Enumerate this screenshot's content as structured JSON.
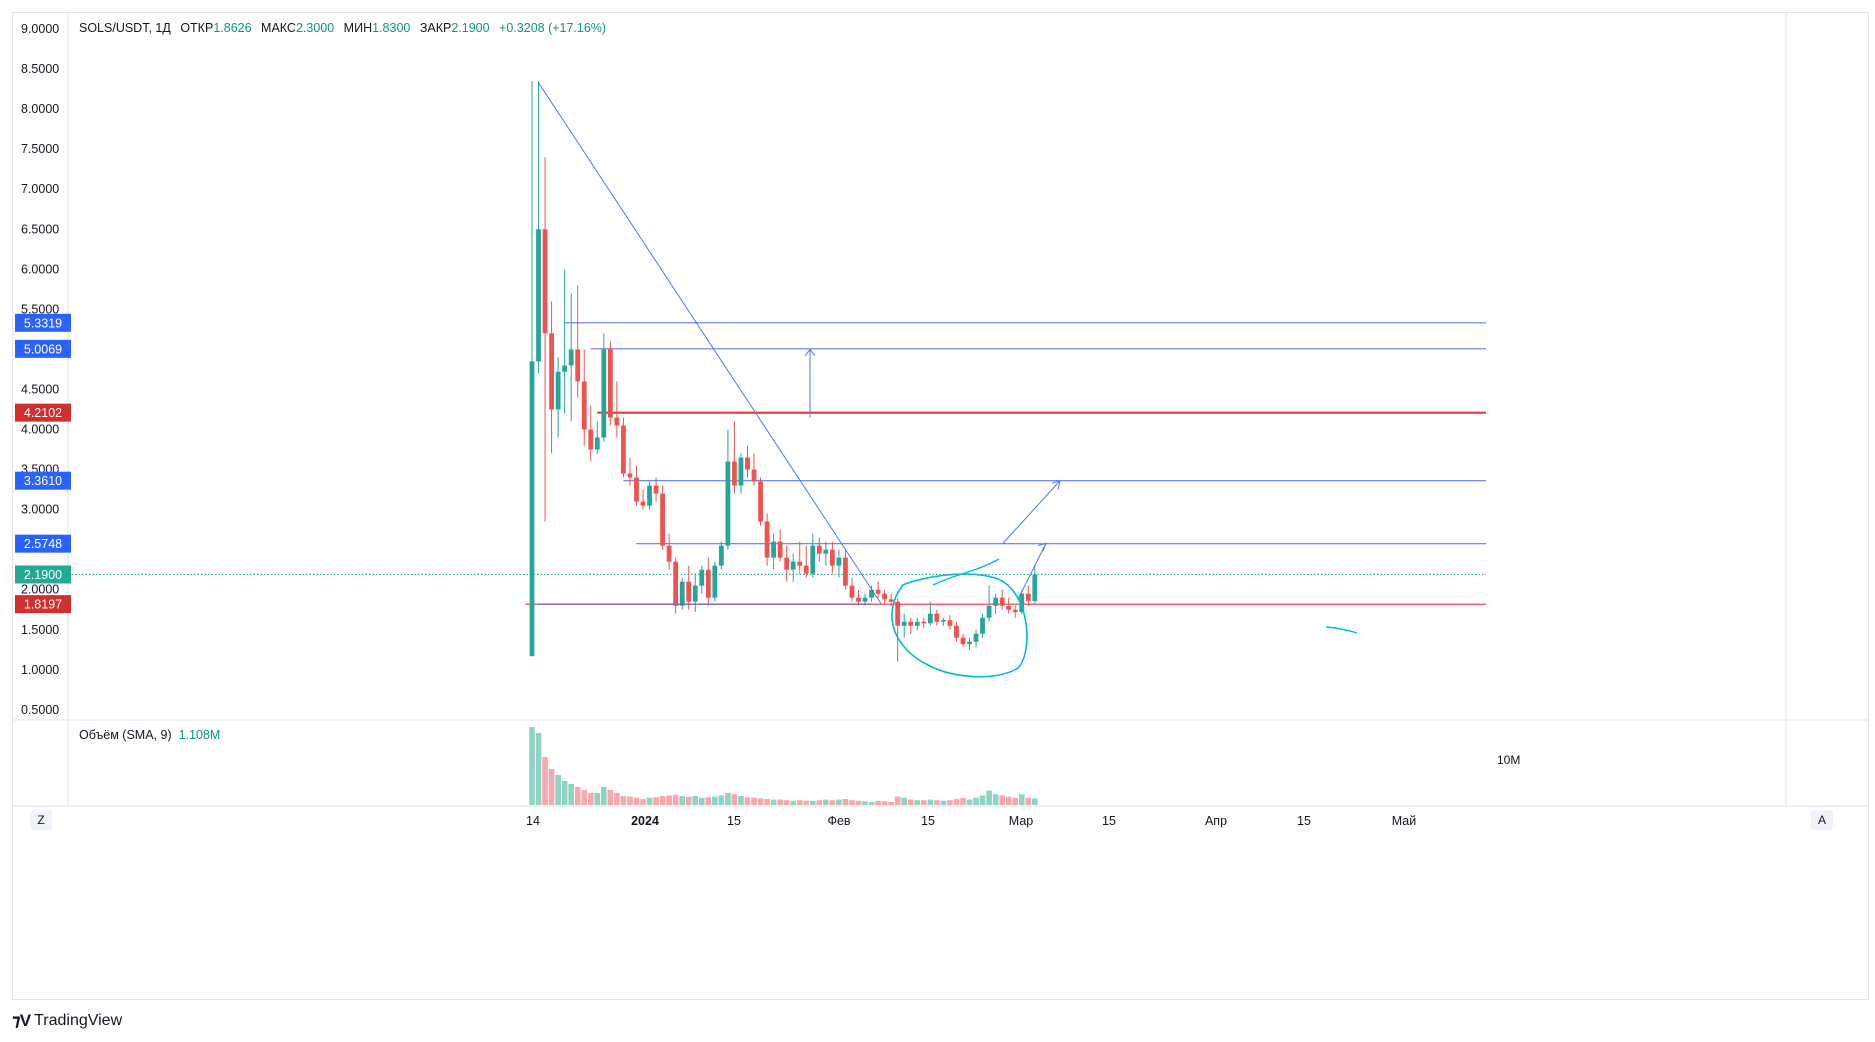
{
  "header": {
    "symbol": "SOLS/USDT",
    "interval": "1Д",
    "open_label": "ОТКР",
    "open": "1.8626",
    "high_label": "МАКС",
    "high": "2.3000",
    "low_label": "МИН",
    "low": "1.8300",
    "close_label": "ЗАКР",
    "close": "2.1900",
    "change": "+0.3208 (+17.16%)"
  },
  "volume_header": {
    "label": "Объём (SMA, 9)",
    "value": "1.108M",
    "axis_label": "10M"
  },
  "axis_buttons": {
    "left": "Z",
    "right": "A"
  },
  "branding": {
    "text": "TradingView"
  },
  "colors": {
    "up": "#26a69a",
    "down": "#ef5350",
    "line_blue": "#2962ff",
    "line_red": "#d32f2f",
    "marker_green": "#22ab94",
    "annotation": "#00bcd4",
    "vol_up": "#8fd3c3",
    "vol_down": "#f6a8ae"
  },
  "chart_data": {
    "type": "candlestick",
    "title": "SOLS/USDT, 1Д",
    "y_axis": {
      "ticks": [
        "9.0000",
        "8.5000",
        "8.0000",
        "7.5000",
        "7.0000",
        "6.5000",
        "6.0000",
        "5.5000",
        "4.5000",
        "4.0000",
        "3.5000",
        "3.0000",
        "2.0000",
        "1.5000",
        "1.0000",
        "0.5000"
      ],
      "range": [
        0.4,
        9.1
      ]
    },
    "x_axis": {
      "ticks": [
        "14",
        "2024",
        "15",
        "Фев",
        "15",
        "Мар",
        "15",
        "Апр",
        "15",
        "Май"
      ]
    },
    "price_labels": [
      {
        "value": "5.3319",
        "color": "#2962ff"
      },
      {
        "value": "5.0069",
        "color": "#2962ff"
      },
      {
        "value": "4.2102",
        "color": "#d32f2f"
      },
      {
        "value": "3.3610",
        "color": "#2962ff"
      },
      {
        "value": "2.5748",
        "color": "#2962ff"
      },
      {
        "value": "2.1900",
        "color": "#22ab94"
      },
      {
        "value": "1.8197",
        "color": "#d32f2f"
      }
    ],
    "horizontal_levels": [
      {
        "price": 5.3319,
        "color": "blue",
        "start_day": 5
      },
      {
        "price": 5.0069,
        "color": "blue",
        "start_day": 9
      },
      {
        "price": 4.2102,
        "color": "red",
        "thick": true,
        "start_day": 10
      },
      {
        "price": 3.361,
        "color": "blue",
        "start_day": 14
      },
      {
        "price": 2.5748,
        "color": "blue",
        "start_day": 16
      },
      {
        "price": 1.8197,
        "color": "red",
        "start_day": -1
      },
      {
        "price": 2.19,
        "color": "green",
        "dotted": true,
        "start_day": -70
      }
    ],
    "candles": [
      {
        "o": 1.17,
        "h": 8.35,
        "l": 1.17,
        "c": 4.85
      },
      {
        "o": 4.85,
        "h": 8.35,
        "l": 4.7,
        "c": 6.5
      },
      {
        "o": 6.5,
        "h": 7.4,
        "l": 2.85,
        "c": 5.2
      },
      {
        "o": 5.2,
        "h": 5.6,
        "l": 3.7,
        "c": 4.25
      },
      {
        "o": 4.25,
        "h": 4.9,
        "l": 3.9,
        "c": 4.72
      },
      {
        "o": 4.72,
        "h": 6.0,
        "l": 4.2,
        "c": 4.8
      },
      {
        "o": 4.8,
        "h": 5.7,
        "l": 4.1,
        "c": 5.0
      },
      {
        "o": 5.0,
        "h": 5.8,
        "l": 4.4,
        "c": 4.6
      },
      {
        "o": 4.6,
        "h": 5.0,
        "l": 3.8,
        "c": 4.0
      },
      {
        "o": 4.0,
        "h": 4.3,
        "l": 3.6,
        "c": 3.75
      },
      {
        "o": 3.75,
        "h": 4.1,
        "l": 3.7,
        "c": 3.9
      },
      {
        "o": 3.9,
        "h": 5.2,
        "l": 3.85,
        "c": 5.0
      },
      {
        "o": 5.0,
        "h": 5.1,
        "l": 4.05,
        "c": 4.15
      },
      {
        "o": 4.15,
        "h": 4.6,
        "l": 3.9,
        "c": 4.05
      },
      {
        "o": 4.05,
        "h": 4.15,
        "l": 3.4,
        "c": 3.45
      },
      {
        "o": 3.45,
        "h": 3.65,
        "l": 3.3,
        "c": 3.4
      },
      {
        "o": 3.4,
        "h": 3.55,
        "l": 3.05,
        "c": 3.1
      },
      {
        "o": 3.1,
        "h": 3.25,
        "l": 3.0,
        "c": 3.05
      },
      {
        "o": 3.05,
        "h": 3.35,
        "l": 3.0,
        "c": 3.3
      },
      {
        "o": 3.3,
        "h": 3.4,
        "l": 3.1,
        "c": 3.2
      },
      {
        "o": 3.2,
        "h": 3.3,
        "l": 2.5,
        "c": 2.55
      },
      {
        "o": 2.55,
        "h": 2.7,
        "l": 2.25,
        "c": 2.35
      },
      {
        "o": 2.35,
        "h": 2.4,
        "l": 1.7,
        "c": 1.8
      },
      {
        "o": 1.8,
        "h": 2.15,
        "l": 1.75,
        "c": 2.1
      },
      {
        "o": 2.1,
        "h": 2.3,
        "l": 1.75,
        "c": 1.85
      },
      {
        "o": 1.85,
        "h": 2.2,
        "l": 1.72,
        "c": 2.05
      },
      {
        "o": 2.05,
        "h": 2.3,
        "l": 1.95,
        "c": 2.25
      },
      {
        "o": 2.25,
        "h": 2.4,
        "l": 1.8,
        "c": 1.9
      },
      {
        "o": 1.9,
        "h": 2.35,
        "l": 1.85,
        "c": 2.3
      },
      {
        "o": 2.3,
        "h": 2.6,
        "l": 2.25,
        "c": 2.55
      },
      {
        "o": 2.55,
        "h": 4.0,
        "l": 2.5,
        "c": 3.6
      },
      {
        "o": 3.6,
        "h": 4.1,
        "l": 3.2,
        "c": 3.3
      },
      {
        "o": 3.3,
        "h": 3.7,
        "l": 3.2,
        "c": 3.65
      },
      {
        "o": 3.65,
        "h": 3.8,
        "l": 3.4,
        "c": 3.5
      },
      {
        "o": 3.5,
        "h": 3.7,
        "l": 3.3,
        "c": 3.35
      },
      {
        "o": 3.35,
        "h": 3.4,
        "l": 2.8,
        "c": 2.85
      },
      {
        "o": 2.85,
        "h": 2.95,
        "l": 2.3,
        "c": 2.4
      },
      {
        "o": 2.4,
        "h": 2.7,
        "l": 2.25,
        "c": 2.6
      },
      {
        "o": 2.6,
        "h": 2.75,
        "l": 2.35,
        "c": 2.4
      },
      {
        "o": 2.4,
        "h": 2.55,
        "l": 2.1,
        "c": 2.25
      },
      {
        "o": 2.25,
        "h": 2.45,
        "l": 2.1,
        "c": 2.35
      },
      {
        "o": 2.35,
        "h": 2.6,
        "l": 2.2,
        "c": 2.3
      },
      {
        "o": 2.3,
        "h": 2.55,
        "l": 2.15,
        "c": 2.2
      },
      {
        "o": 2.2,
        "h": 2.7,
        "l": 2.15,
        "c": 2.55
      },
      {
        "o": 2.55,
        "h": 2.65,
        "l": 2.35,
        "c": 2.45
      },
      {
        "o": 2.45,
        "h": 2.6,
        "l": 2.3,
        "c": 2.5
      },
      {
        "o": 2.5,
        "h": 2.6,
        "l": 2.2,
        "c": 2.3
      },
      {
        "o": 2.3,
        "h": 2.5,
        "l": 2.15,
        "c": 2.4
      },
      {
        "o": 2.4,
        "h": 2.5,
        "l": 2.0,
        "c": 2.05
      },
      {
        "o": 2.05,
        "h": 2.15,
        "l": 1.85,
        "c": 1.9
      },
      {
        "o": 1.9,
        "h": 2.0,
        "l": 1.8,
        "c": 1.85
      },
      {
        "o": 1.85,
        "h": 1.95,
        "l": 1.8,
        "c": 1.9
      },
      {
        "o": 1.9,
        "h": 2.05,
        "l": 1.85,
        "c": 2.0
      },
      {
        "o": 2.0,
        "h": 2.1,
        "l": 1.9,
        "c": 1.95
      },
      {
        "o": 1.95,
        "h": 2.0,
        "l": 1.82,
        "c": 1.88
      },
      {
        "o": 1.88,
        "h": 1.95,
        "l": 1.8,
        "c": 1.85
      },
      {
        "o": 1.85,
        "h": 1.9,
        "l": 1.1,
        "c": 1.55
      },
      {
        "o": 1.55,
        "h": 1.7,
        "l": 1.4,
        "c": 1.6
      },
      {
        "o": 1.6,
        "h": 1.65,
        "l": 1.45,
        "c": 1.55
      },
      {
        "o": 1.55,
        "h": 1.65,
        "l": 1.5,
        "c": 1.6
      },
      {
        "o": 1.6,
        "h": 1.65,
        "l": 1.52,
        "c": 1.58
      },
      {
        "o": 1.58,
        "h": 1.85,
        "l": 1.55,
        "c": 1.7
      },
      {
        "o": 1.7,
        "h": 1.75,
        "l": 1.55,
        "c": 1.6
      },
      {
        "o": 1.6,
        "h": 1.65,
        "l": 1.55,
        "c": 1.62
      },
      {
        "o": 1.62,
        "h": 1.68,
        "l": 1.5,
        "c": 1.55
      },
      {
        "o": 1.55,
        "h": 1.6,
        "l": 1.35,
        "c": 1.4
      },
      {
        "o": 1.4,
        "h": 1.45,
        "l": 1.28,
        "c": 1.32
      },
      {
        "o": 1.32,
        "h": 1.4,
        "l": 1.25,
        "c": 1.35
      },
      {
        "o": 1.35,
        "h": 1.5,
        "l": 1.28,
        "c": 1.45
      },
      {
        "o": 1.45,
        "h": 1.7,
        "l": 1.4,
        "c": 1.65
      },
      {
        "o": 1.65,
        "h": 2.05,
        "l": 1.6,
        "c": 1.8
      },
      {
        "o": 1.8,
        "h": 1.95,
        "l": 1.7,
        "c": 1.9
      },
      {
        "o": 1.9,
        "h": 2.0,
        "l": 1.75,
        "c": 1.8
      },
      {
        "o": 1.8,
        "h": 1.9,
        "l": 1.7,
        "c": 1.75
      },
      {
        "o": 1.75,
        "h": 1.8,
        "l": 1.65,
        "c": 1.72
      },
      {
        "o": 1.72,
        "h": 2.0,
        "l": 1.7,
        "c": 1.95
      },
      {
        "o": 1.95,
        "h": 2.05,
        "l": 1.8,
        "c": 1.86
      },
      {
        "o": 1.86,
        "h": 2.3,
        "l": 1.83,
        "c": 2.19
      }
    ],
    "volume": [
      13,
      12,
      8,
      6,
      5,
      4,
      3.5,
      3,
      2.5,
      2,
      2,
      3,
      2.5,
      2,
      1.5,
      1.4,
      1.2,
      1,
      1.2,
      1.3,
      1.5,
      1.6,
      1.7,
      1.5,
      1.4,
      1.5,
      1.2,
      1.3,
      1.4,
      1.6,
      2,
      1.8,
      1.5,
      1.3,
      1.2,
      1.1,
      1,
      0.9,
      0.9,
      0.8,
      0.7,
      0.8,
      0.7,
      0.7,
      0.8,
      0.9,
      0.8,
      0.9,
      1,
      0.8,
      0.7,
      0.6,
      0.5,
      0.7,
      0.6,
      0.5,
      1.4,
      1.2,
      0.9,
      0.8,
      0.8,
      0.9,
      0.8,
      0.7,
      0.8,
      1,
      1.2,
      0.9,
      1.2,
      1.6,
      2.4,
      1.8,
      1.6,
      1.4,
      1.2,
      1.8,
      1.2,
      1.1
    ]
  }
}
